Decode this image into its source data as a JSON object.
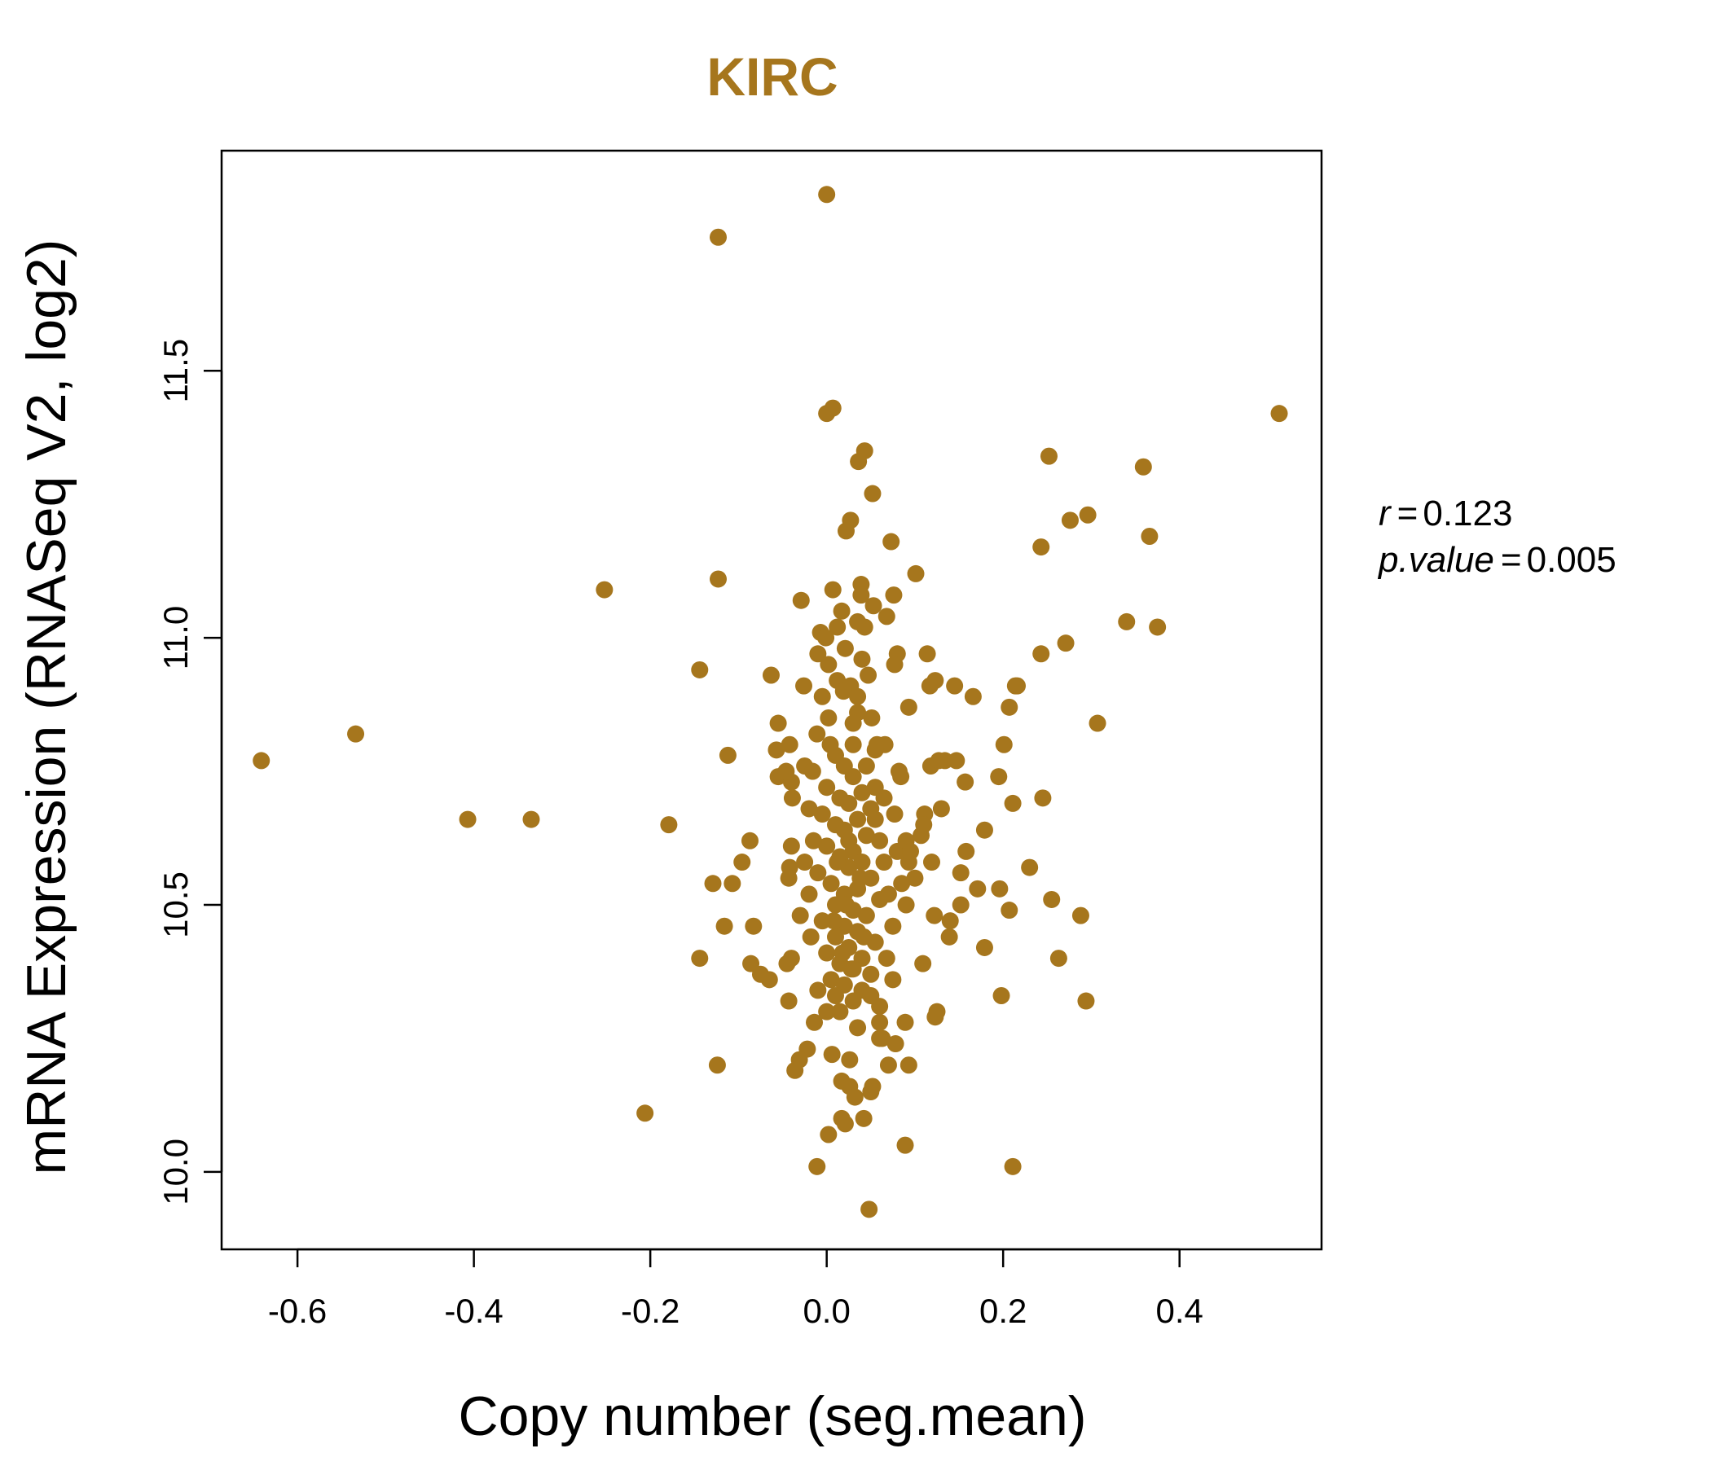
{
  "chart_data": {
    "type": "scatter",
    "title": "KIRC",
    "xlabel": "Copy number (seg.mean)",
    "ylabel": "mRNA Expression (RNASeq V2, log2)",
    "xlim": [
      -0.686,
      0.561
    ],
    "ylim": [
      9.855,
      11.912
    ],
    "xticks": [
      -0.6,
      -0.4,
      -0.2,
      0.0,
      0.2,
      0.4
    ],
    "xtick_labels": [
      "-0.6",
      "-0.4",
      "-0.2",
      "0.0",
      "0.2",
      "0.4"
    ],
    "yticks": [
      10.0,
      10.5,
      11.0,
      11.5
    ],
    "ytick_labels": [
      "10.0",
      "10.5",
      "11.0",
      "11.5"
    ],
    "grid": false,
    "color": "#A6761D",
    "annotation": {
      "r_label": "r",
      "r_value": "0.123",
      "p_label": "p.value",
      "p_value": "0.005"
    },
    "points": [
      [
        0.0,
        11.83
      ],
      [
        -0.123,
        11.75
      ],
      [
        0.513,
        11.42
      ],
      [
        0.0,
        11.42
      ],
      [
        0.007,
        11.43
      ],
      [
        0.043,
        11.35
      ],
      [
        0.036,
        11.33
      ],
      [
        0.252,
        11.34
      ],
      [
        0.359,
        11.32
      ],
      [
        0.052,
        11.27
      ],
      [
        0.027,
        11.22
      ],
      [
        0.022,
        11.2
      ],
      [
        0.296,
        11.23
      ],
      [
        0.276,
        11.22
      ],
      [
        0.366,
        11.19
      ],
      [
        0.243,
        11.17
      ],
      [
        0.073,
        11.18
      ],
      [
        -0.252,
        11.09
      ],
      [
        -0.123,
        11.11
      ],
      [
        0.101,
        11.12
      ],
      [
        0.039,
        11.1
      ],
      [
        0.039,
        11.08
      ],
      [
        0.007,
        11.09
      ],
      [
        -0.029,
        11.07
      ],
      [
        0.076,
        11.08
      ],
      [
        0.017,
        11.05
      ],
      [
        0.053,
        11.06
      ],
      [
        0.068,
        11.04
      ],
      [
        0.043,
        11.02
      ],
      [
        0.035,
        11.03
      ],
      [
        0.012,
        11.02
      ],
      [
        0.34,
        11.03
      ],
      [
        0.375,
        11.02
      ],
      [
        0.271,
        10.99
      ],
      [
        -0.007,
        11.01
      ],
      [
        -0.001,
        11.0
      ],
      [
        0.021,
        10.98
      ],
      [
        -0.01,
        10.97
      ],
      [
        0.002,
        10.95
      ],
      [
        0.04,
        10.96
      ],
      [
        0.08,
        10.97
      ],
      [
        0.077,
        10.95
      ],
      [
        0.114,
        10.97
      ],
      [
        0.243,
        10.97
      ],
      [
        -0.144,
        10.94
      ],
      [
        -0.063,
        10.93
      ],
      [
        0.047,
        10.93
      ],
      [
        0.214,
        10.91
      ],
      [
        0.216,
        10.91
      ],
      [
        0.145,
        10.91
      ],
      [
        0.123,
        10.92
      ],
      [
        0.117,
        10.91
      ],
      [
        -0.026,
        10.91
      ],
      [
        0.012,
        10.92
      ],
      [
        0.027,
        10.91
      ],
      [
        0.019,
        10.9
      ],
      [
        0.035,
        10.89
      ],
      [
        -0.005,
        10.89
      ],
      [
        0.166,
        10.89
      ],
      [
        0.093,
        10.87
      ],
      [
        0.207,
        10.87
      ],
      [
        0.035,
        10.86
      ],
      [
        0.002,
        10.85
      ],
      [
        0.051,
        10.85
      ],
      [
        0.03,
        10.84
      ],
      [
        0.307,
        10.84
      ],
      [
        -0.055,
        10.84
      ],
      [
        -0.011,
        10.82
      ],
      [
        -0.534,
        10.82
      ],
      [
        -0.641,
        10.77
      ],
      [
        0.004,
        10.8
      ],
      [
        -0.057,
        10.79
      ],
      [
        -0.042,
        10.8
      ],
      [
        0.057,
        10.8
      ],
      [
        0.066,
        10.8
      ],
      [
        -0.112,
        10.78
      ],
      [
        0.082,
        10.75
      ],
      [
        0.084,
        10.74
      ],
      [
        -0.025,
        10.76
      ],
      [
        -0.016,
        10.75
      ],
      [
        0.134,
        10.77
      ],
      [
        0.147,
        10.77
      ],
      [
        0.118,
        10.76
      ],
      [
        0.127,
        10.77
      ],
      [
        0.201,
        10.8
      ],
      [
        0.195,
        10.74
      ],
      [
        0.157,
        10.73
      ],
      [
        -0.055,
        10.74
      ],
      [
        -0.04,
        10.73
      ],
      [
        -0.046,
        10.75
      ],
      [
        0.055,
        10.72
      ],
      [
        -0.039,
        10.7
      ],
      [
        0.245,
        10.7
      ],
      [
        0.211,
        10.69
      ],
      [
        0.13,
        10.68
      ],
      [
        0.111,
        10.67
      ],
      [
        0.077,
        10.67
      ],
      [
        -0.407,
        10.66
      ],
      [
        -0.335,
        10.66
      ],
      [
        -0.179,
        10.65
      ],
      [
        0.179,
        10.64
      ],
      [
        0.158,
        10.6
      ],
      [
        -0.087,
        10.62
      ],
      [
        -0.04,
        10.61
      ],
      [
        -0.096,
        10.58
      ],
      [
        -0.129,
        10.54
      ],
      [
        -0.107,
        10.54
      ],
      [
        -0.042,
        10.57
      ],
      [
        -0.043,
        10.55
      ],
      [
        0.23,
        10.57
      ],
      [
        0.152,
        10.56
      ],
      [
        0.119,
        10.58
      ],
      [
        0.107,
        10.63
      ],
      [
        0.093,
        10.58
      ],
      [
        0.152,
        10.5
      ],
      [
        0.171,
        10.53
      ],
      [
        0.196,
        10.53
      ],
      [
        0.255,
        10.51
      ],
      [
        0.207,
        10.49
      ],
      [
        0.288,
        10.48
      ],
      [
        0.122,
        10.48
      ],
      [
        -0.083,
        10.46
      ],
      [
        -0.116,
        10.46
      ],
      [
        0.14,
        10.47
      ],
      [
        0.139,
        10.44
      ],
      [
        0.179,
        10.42
      ],
      [
        -0.144,
        10.4
      ],
      [
        -0.086,
        10.39
      ],
      [
        -0.045,
        10.39
      ],
      [
        -0.075,
        10.37
      ],
      [
        -0.065,
        10.36
      ],
      [
        0.109,
        10.39
      ],
      [
        0.263,
        10.4
      ],
      [
        -0.043,
        10.32
      ],
      [
        0.198,
        10.33
      ],
      [
        0.294,
        10.32
      ],
      [
        0.125,
        10.3
      ],
      [
        0.123,
        10.29
      ],
      [
        0.089,
        10.28
      ],
      [
        0.063,
        10.25
      ],
      [
        0.06,
        10.25
      ],
      [
        0.078,
        10.24
      ],
      [
        -0.014,
        10.28
      ],
      [
        0.093,
        10.2
      ],
      [
        0.07,
        10.2
      ],
      [
        0.026,
        10.21
      ],
      [
        0.006,
        10.22
      ],
      [
        -0.022,
        10.23
      ],
      [
        -0.031,
        10.21
      ],
      [
        -0.036,
        10.19
      ],
      [
        -0.124,
        10.2
      ],
      [
        -0.206,
        10.11
      ],
      [
        0.017,
        10.17
      ],
      [
        0.026,
        10.16
      ],
      [
        0.052,
        10.16
      ],
      [
        0.032,
        10.14
      ],
      [
        0.05,
        10.15
      ],
      [
        0.017,
        10.1
      ],
      [
        0.021,
        10.09
      ],
      [
        0.042,
        10.1
      ],
      [
        0.002,
        10.07
      ],
      [
        0.089,
        10.05
      ],
      [
        -0.011,
        10.01
      ],
      [
        0.211,
        10.01
      ],
      [
        0.048,
        9.93
      ],
      [
        0.01,
        10.78
      ],
      [
        0.02,
        10.76
      ],
      [
        0.03,
        10.74
      ],
      [
        0.0,
        10.72
      ],
      [
        0.04,
        10.71
      ],
      [
        0.015,
        10.7
      ],
      [
        0.025,
        10.69
      ],
      [
        0.05,
        10.68
      ],
      [
        -0.005,
        10.67
      ],
      [
        0.035,
        10.66
      ],
      [
        0.01,
        10.65
      ],
      [
        0.02,
        10.64
      ],
      [
        0.045,
        10.63
      ],
      [
        0.06,
        10.62
      ],
      [
        0.0,
        10.61
      ],
      [
        0.03,
        10.6
      ],
      [
        0.015,
        10.59
      ],
      [
        0.04,
        10.58
      ],
      [
        0.025,
        10.57
      ],
      [
        -0.01,
        10.56
      ],
      [
        0.05,
        10.55
      ],
      [
        0.005,
        10.54
      ],
      [
        0.035,
        10.53
      ],
      [
        0.02,
        10.52
      ],
      [
        0.06,
        10.51
      ],
      [
        0.01,
        10.5
      ],
      [
        0.03,
        10.49
      ],
      [
        0.045,
        10.48
      ],
      [
        -0.005,
        10.47
      ],
      [
        0.02,
        10.46
      ],
      [
        0.035,
        10.45
      ],
      [
        0.01,
        10.44
      ],
      [
        0.055,
        10.43
      ],
      [
        0.025,
        10.42
      ],
      [
        0.0,
        10.41
      ],
      [
        0.04,
        10.4
      ],
      [
        0.015,
        10.39
      ],
      [
        0.03,
        10.38
      ],
      [
        0.05,
        10.37
      ],
      [
        0.005,
        10.36
      ],
      [
        0.02,
        10.35
      ],
      [
        0.04,
        10.34
      ],
      [
        0.01,
        10.33
      ],
      [
        0.03,
        10.32
      ],
      [
        0.06,
        10.31
      ],
      [
        0.015,
        10.3
      ],
      [
        0.025,
        10.62
      ],
      [
        0.012,
        10.58
      ],
      [
        0.038,
        10.55
      ],
      [
        0.022,
        10.5
      ],
      [
        0.008,
        10.47
      ],
      [
        0.042,
        10.44
      ],
      [
        0.018,
        10.41
      ],
      [
        0.028,
        10.38
      ],
      [
        0.065,
        10.58
      ],
      [
        0.07,
        10.52
      ],
      [
        0.075,
        10.46
      ],
      [
        0.068,
        10.4
      ],
      [
        0.08,
        10.6
      ],
      [
        0.085,
        10.54
      ],
      [
        -0.015,
        10.62
      ],
      [
        -0.02,
        10.52
      ],
      [
        -0.018,
        10.44
      ],
      [
        -0.025,
        10.58
      ],
      [
        0.055,
        10.66
      ],
      [
        0.065,
        10.7
      ],
      [
        0.045,
        10.76
      ],
      [
        -0.02,
        10.68
      ],
      [
        0.09,
        10.5
      ],
      [
        0.075,
        10.36
      ],
      [
        0.05,
        10.33
      ],
      [
        0.0,
        10.3
      ],
      [
        0.06,
        10.28
      ],
      [
        0.035,
        10.27
      ],
      [
        -0.01,
        10.34
      ],
      [
        0.09,
        10.62
      ],
      [
        0.1,
        10.55
      ],
      [
        0.11,
        10.65
      ],
      [
        0.095,
        10.6
      ],
      [
        -0.03,
        10.48
      ],
      [
        -0.04,
        10.4
      ],
      [
        0.03,
        10.8
      ],
      [
        0.055,
        10.79
      ]
    ]
  }
}
